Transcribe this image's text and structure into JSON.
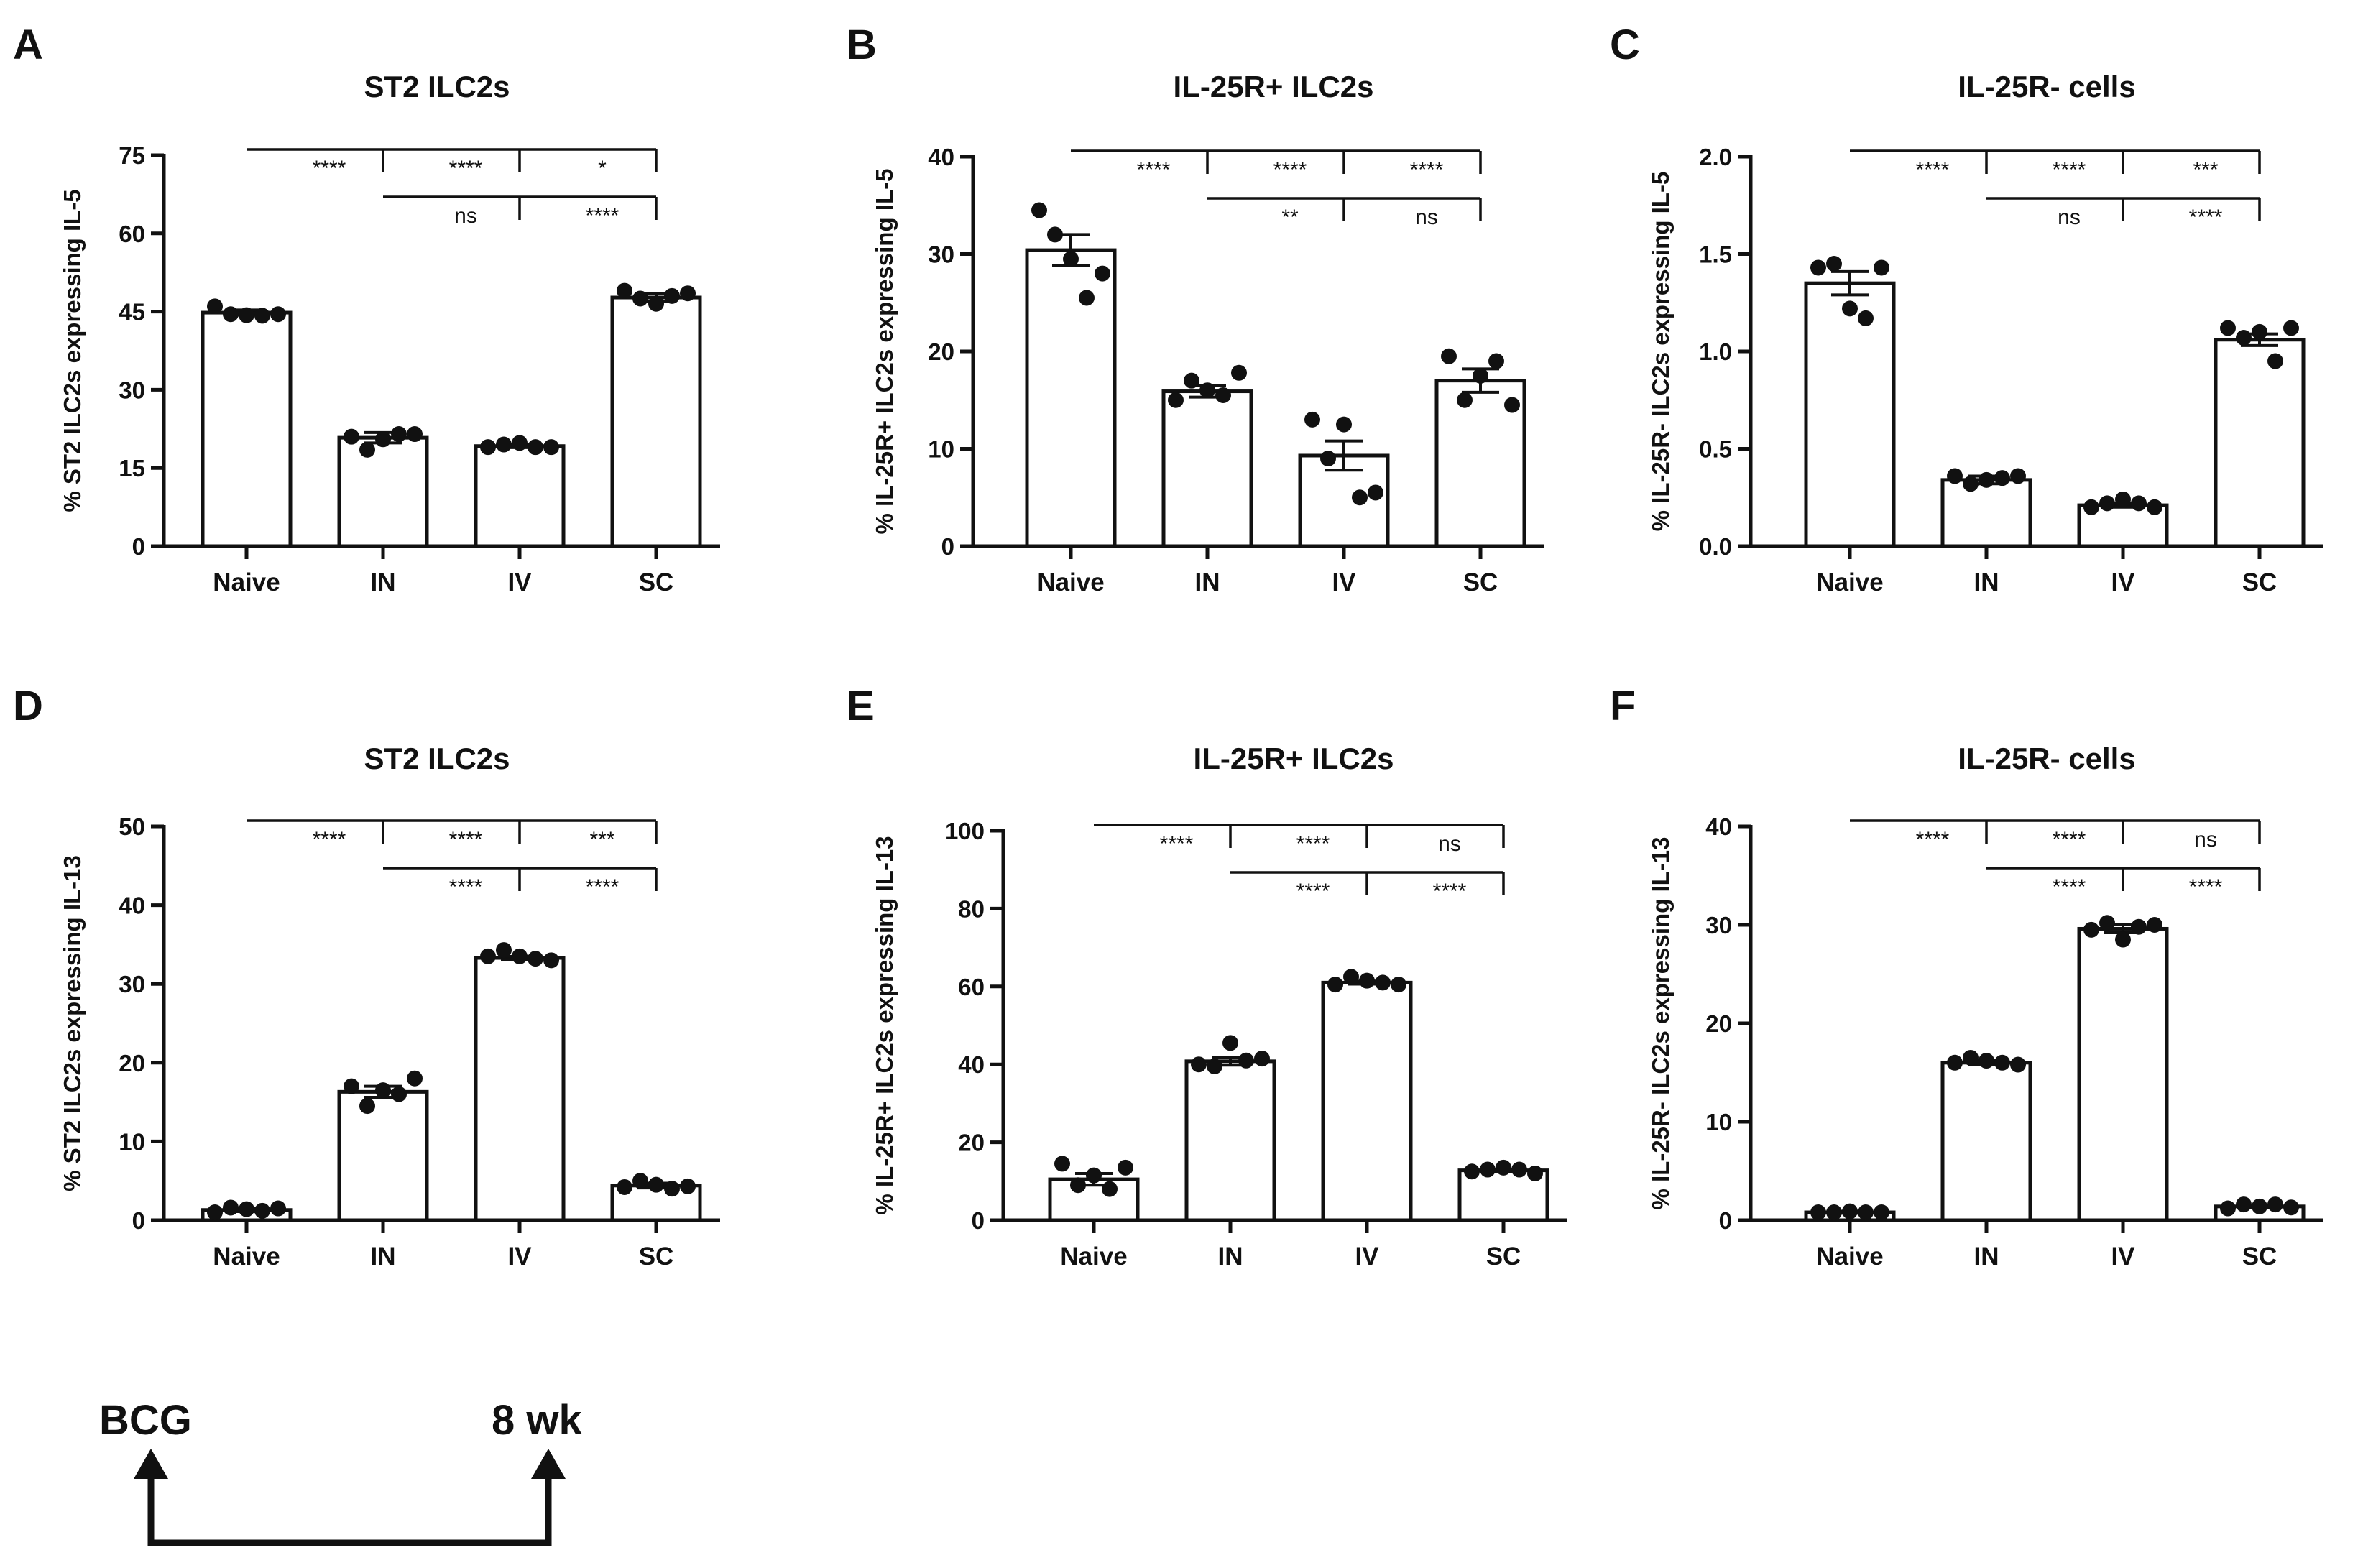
{
  "figure": {
    "timeline": {
      "start_label": "BCG",
      "end_label": "8 wk"
    }
  },
  "chart_data": [
    {
      "panel": "A",
      "type": "bar",
      "title": "ST2 ILC2s",
      "ylabel": "% ST2 ILC2s  expressing IL-5",
      "xlabel": "",
      "ylim": [
        0,
        75
      ],
      "yticks": [
        0,
        15,
        30,
        45,
        60,
        75
      ],
      "ytick_labels": [
        "0",
        "15",
        "30",
        "45",
        "60",
        "75"
      ],
      "categories": [
        "Naive",
        "IN",
        "IV",
        "SC"
      ],
      "values": [
        44.8,
        20.8,
        19.2,
        47.7
      ],
      "sem": [
        0.5,
        1.0,
        0.3,
        0.7
      ],
      "points": [
        [
          46.0,
          44.5,
          44.3,
          44.2,
          44.5
        ],
        [
          21.0,
          18.5,
          20.5,
          21.5,
          21.5
        ],
        [
          19.0,
          19.5,
          19.8,
          19.0,
          19.0
        ],
        [
          49.0,
          47.5,
          46.5,
          48.0,
          48.5
        ]
      ],
      "comparisons": [
        {
          "from": 0,
          "to": 1,
          "label": "****",
          "row": 0
        },
        {
          "from": 1,
          "to": 2,
          "label": "****",
          "row": 0
        },
        {
          "from": 2,
          "to": 3,
          "label": "*",
          "row": 0
        },
        {
          "from": 1,
          "to": 2,
          "label": "ns",
          "row": 1
        },
        {
          "from": 2,
          "to": 3,
          "label": "****",
          "row": 1
        }
      ]
    },
    {
      "panel": "B",
      "type": "bar",
      "title": "IL-25R+ ILC2s",
      "ylabel": "% IL-25R+ ILC2s  expressing IL-5",
      "xlabel": "",
      "ylim": [
        0,
        40
      ],
      "yticks": [
        0,
        10,
        20,
        30,
        40
      ],
      "ytick_labels": [
        "0",
        "10",
        "20",
        "30",
        "40"
      ],
      "categories": [
        "Naive",
        "IN",
        "IV",
        "SC"
      ],
      "values": [
        30.4,
        15.9,
        9.3,
        17.0
      ],
      "sem": [
        1.6,
        0.6,
        1.5,
        1.2
      ],
      "points": [
        [
          34.5,
          32.0,
          29.5,
          25.5,
          28.0
        ],
        [
          15.0,
          17.0,
          16.0,
          15.5,
          17.8
        ],
        [
          13.0,
          9.0,
          12.5,
          5.0,
          5.5
        ],
        [
          19.5,
          15.0,
          17.5,
          19.0,
          14.5
        ]
      ],
      "comparisons": [
        {
          "from": 0,
          "to": 1,
          "label": "****",
          "row": 0
        },
        {
          "from": 1,
          "to": 2,
          "label": "****",
          "row": 0
        },
        {
          "from": 2,
          "to": 3,
          "label": "****",
          "row": 0
        },
        {
          "from": 1,
          "to": 2,
          "label": "**",
          "row": 1
        },
        {
          "from": 2,
          "to": 3,
          "label": "ns",
          "row": 1
        }
      ]
    },
    {
      "panel": "C",
      "type": "bar",
      "title": "IL-25R- cells",
      "ylabel": "% IL-25R- ILC2s  expressing IL-5",
      "xlabel": "",
      "ylim": [
        0,
        2.0
      ],
      "yticks": [
        0,
        0.5,
        1.0,
        1.5,
        2.0
      ],
      "ytick_labels": [
        "0.0",
        "0.5",
        "1.0",
        "1.5",
        "2.0"
      ],
      "categories": [
        "Naive",
        "IN",
        "IV",
        "SC"
      ],
      "values": [
        1.35,
        0.34,
        0.21,
        1.06
      ],
      "sem": [
        0.06,
        0.02,
        0.01,
        0.03
      ],
      "points": [
        [
          1.43,
          1.45,
          1.22,
          1.17,
          1.43
        ],
        [
          0.36,
          0.32,
          0.34,
          0.35,
          0.36
        ],
        [
          0.2,
          0.22,
          0.24,
          0.22,
          0.2
        ],
        [
          1.12,
          1.07,
          1.1,
          0.95,
          1.12
        ]
      ],
      "comparisons": [
        {
          "from": 0,
          "to": 1,
          "label": "****",
          "row": 0
        },
        {
          "from": 1,
          "to": 2,
          "label": "****",
          "row": 0
        },
        {
          "from": 2,
          "to": 3,
          "label": "***",
          "row": 0
        },
        {
          "from": 1,
          "to": 2,
          "label": "ns",
          "row": 1
        },
        {
          "from": 2,
          "to": 3,
          "label": "****",
          "row": 1
        }
      ]
    },
    {
      "panel": "D",
      "type": "bar",
      "title": "ST2 ILC2s",
      "ylabel": "% ST2 ILC2s  expressing IL-13",
      "xlabel": "",
      "ylim": [
        0,
        50
      ],
      "yticks": [
        0,
        10,
        20,
        30,
        40,
        50
      ],
      "ytick_labels": [
        "0",
        "10",
        "20",
        "30",
        "40",
        "50"
      ],
      "categories": [
        "Naive",
        "IN",
        "IV",
        "SC"
      ],
      "values": [
        1.3,
        16.3,
        33.3,
        4.4
      ],
      "sem": [
        0.2,
        0.7,
        0.2,
        0.3
      ],
      "points": [
        [
          1.0,
          1.6,
          1.4,
          1.2,
          1.5
        ],
        [
          17.0,
          14.5,
          16.5,
          16.0,
          18.0
        ],
        [
          33.5,
          34.3,
          33.5,
          33.2,
          33.0
        ],
        [
          4.2,
          5.0,
          4.5,
          4.0,
          4.3
        ]
      ],
      "comparisons": [
        {
          "from": 0,
          "to": 1,
          "label": "****",
          "row": 0
        },
        {
          "from": 1,
          "to": 2,
          "label": "****",
          "row": 0
        },
        {
          "from": 2,
          "to": 3,
          "label": "***",
          "row": 0
        },
        {
          "from": 1,
          "to": 2,
          "label": "****",
          "row": 1
        },
        {
          "from": 2,
          "to": 3,
          "label": "****",
          "row": 1
        }
      ]
    },
    {
      "panel": "E",
      "type": "bar",
      "title": "IL-25R+ ILC2s",
      "ylabel": "% IL-25R+ ILC2s  expressing IL-13",
      "xlabel": "",
      "ylim": [
        0,
        100
      ],
      "yticks": [
        0,
        20,
        40,
        60,
        80,
        100
      ],
      "ytick_labels": [
        "0",
        "20",
        "40",
        "60",
        "80",
        "100"
      ],
      "categories": [
        "Naive",
        "IN",
        "IV",
        "SC"
      ],
      "values": [
        10.5,
        40.8,
        61.0,
        12.8
      ],
      "sem": [
        1.5,
        1.0,
        0.4,
        0.3
      ],
      "points": [
        [
          14.5,
          9.0,
          11.5,
          8.0,
          13.5
        ],
        [
          40.0,
          39.5,
          45.5,
          41.0,
          41.5
        ],
        [
          60.5,
          62.5,
          61.5,
          61.0,
          60.5
        ],
        [
          12.5,
          13.0,
          13.5,
          13.0,
          12.0
        ]
      ],
      "comparisons": [
        {
          "from": 0,
          "to": 1,
          "label": "****",
          "row": 0
        },
        {
          "from": 1,
          "to": 2,
          "label": "****",
          "row": 0
        },
        {
          "from": 2,
          "to": 3,
          "label": "ns",
          "row": 0
        },
        {
          "from": 1,
          "to": 2,
          "label": "****",
          "row": 1
        },
        {
          "from": 2,
          "to": 3,
          "label": "****",
          "row": 1
        }
      ]
    },
    {
      "panel": "F",
      "type": "bar",
      "title": "IL-25R- cells",
      "ylabel": "% IL-25R- ILC2s expressing IL-13",
      "xlabel": "",
      "ylim": [
        0,
        40
      ],
      "yticks": [
        0,
        10,
        20,
        30,
        40
      ],
      "ytick_labels": [
        "0",
        "10",
        "20",
        "30",
        "40"
      ],
      "categories": [
        "Naive",
        "IN",
        "IV",
        "SC"
      ],
      "values": [
        0.8,
        16.0,
        29.6,
        1.4
      ],
      "sem": [
        0.1,
        0.2,
        0.4,
        0.1
      ],
      "points": [
        [
          0.8,
          0.8,
          0.9,
          0.8,
          0.8
        ],
        [
          16.0,
          16.5,
          16.2,
          16.0,
          15.8
        ],
        [
          29.5,
          30.2,
          28.5,
          29.8,
          30.0
        ],
        [
          1.2,
          1.6,
          1.4,
          1.6,
          1.3
        ]
      ],
      "comparisons": [
        {
          "from": 0,
          "to": 1,
          "label": "****",
          "row": 0
        },
        {
          "from": 1,
          "to": 2,
          "label": "****",
          "row": 0
        },
        {
          "from": 2,
          "to": 3,
          "label": "ns",
          "row": 0
        },
        {
          "from": 1,
          "to": 2,
          "label": "****",
          "row": 1
        },
        {
          "from": 2,
          "to": 3,
          "label": "****",
          "row": 1
        }
      ]
    }
  ]
}
